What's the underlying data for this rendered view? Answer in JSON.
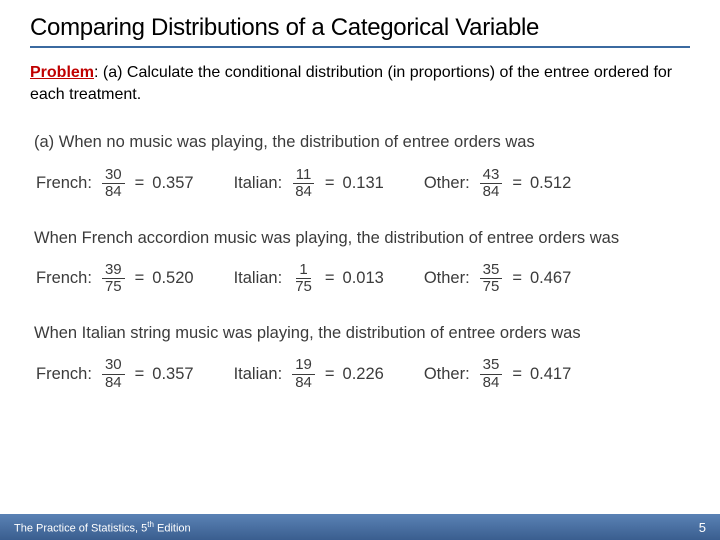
{
  "title": "Comparing Distributions of a Categorical Variable",
  "problem": {
    "label": "Problem",
    "text": ": (a) Calculate the conditional distribution (in proportions) of the entree ordered for each treatment."
  },
  "scenarios": [
    {
      "intro": "(a) When no music was playing, the distribution of entree orders was",
      "items": [
        {
          "label": "French:",
          "num": "30",
          "den": "84",
          "val": "0.357"
        },
        {
          "label": "Italian:",
          "num": "11",
          "den": "84",
          "val": "0.131"
        },
        {
          "label": "Other:",
          "num": "43",
          "den": "84",
          "val": "0.512"
        }
      ]
    },
    {
      "intro": "When French accordion music was playing, the distribution of entree orders was",
      "items": [
        {
          "label": "French:",
          "num": "39",
          "den": "75",
          "val": "0.520"
        },
        {
          "label": "Italian:",
          "num": "1",
          "den": "75",
          "val": "0.013"
        },
        {
          "label": "Other:",
          "num": "35",
          "den": "75",
          "val": "0.467"
        }
      ]
    },
    {
      "intro": "When Italian string music was playing, the distribution of entree orders was",
      "items": [
        {
          "label": "French:",
          "num": "30",
          "den": "84",
          "val": "0.357"
        },
        {
          "label": "Italian:",
          "num": "19",
          "den": "84",
          "val": "0.226"
        },
        {
          "label": "Other:",
          "num": "35",
          "den": "84",
          "val": "0.417"
        }
      ]
    }
  ],
  "footer": {
    "book": "The Practice of Statistics, 5",
    "ed_suffix": "th",
    "ed_tail": " Edition",
    "page": "5"
  }
}
